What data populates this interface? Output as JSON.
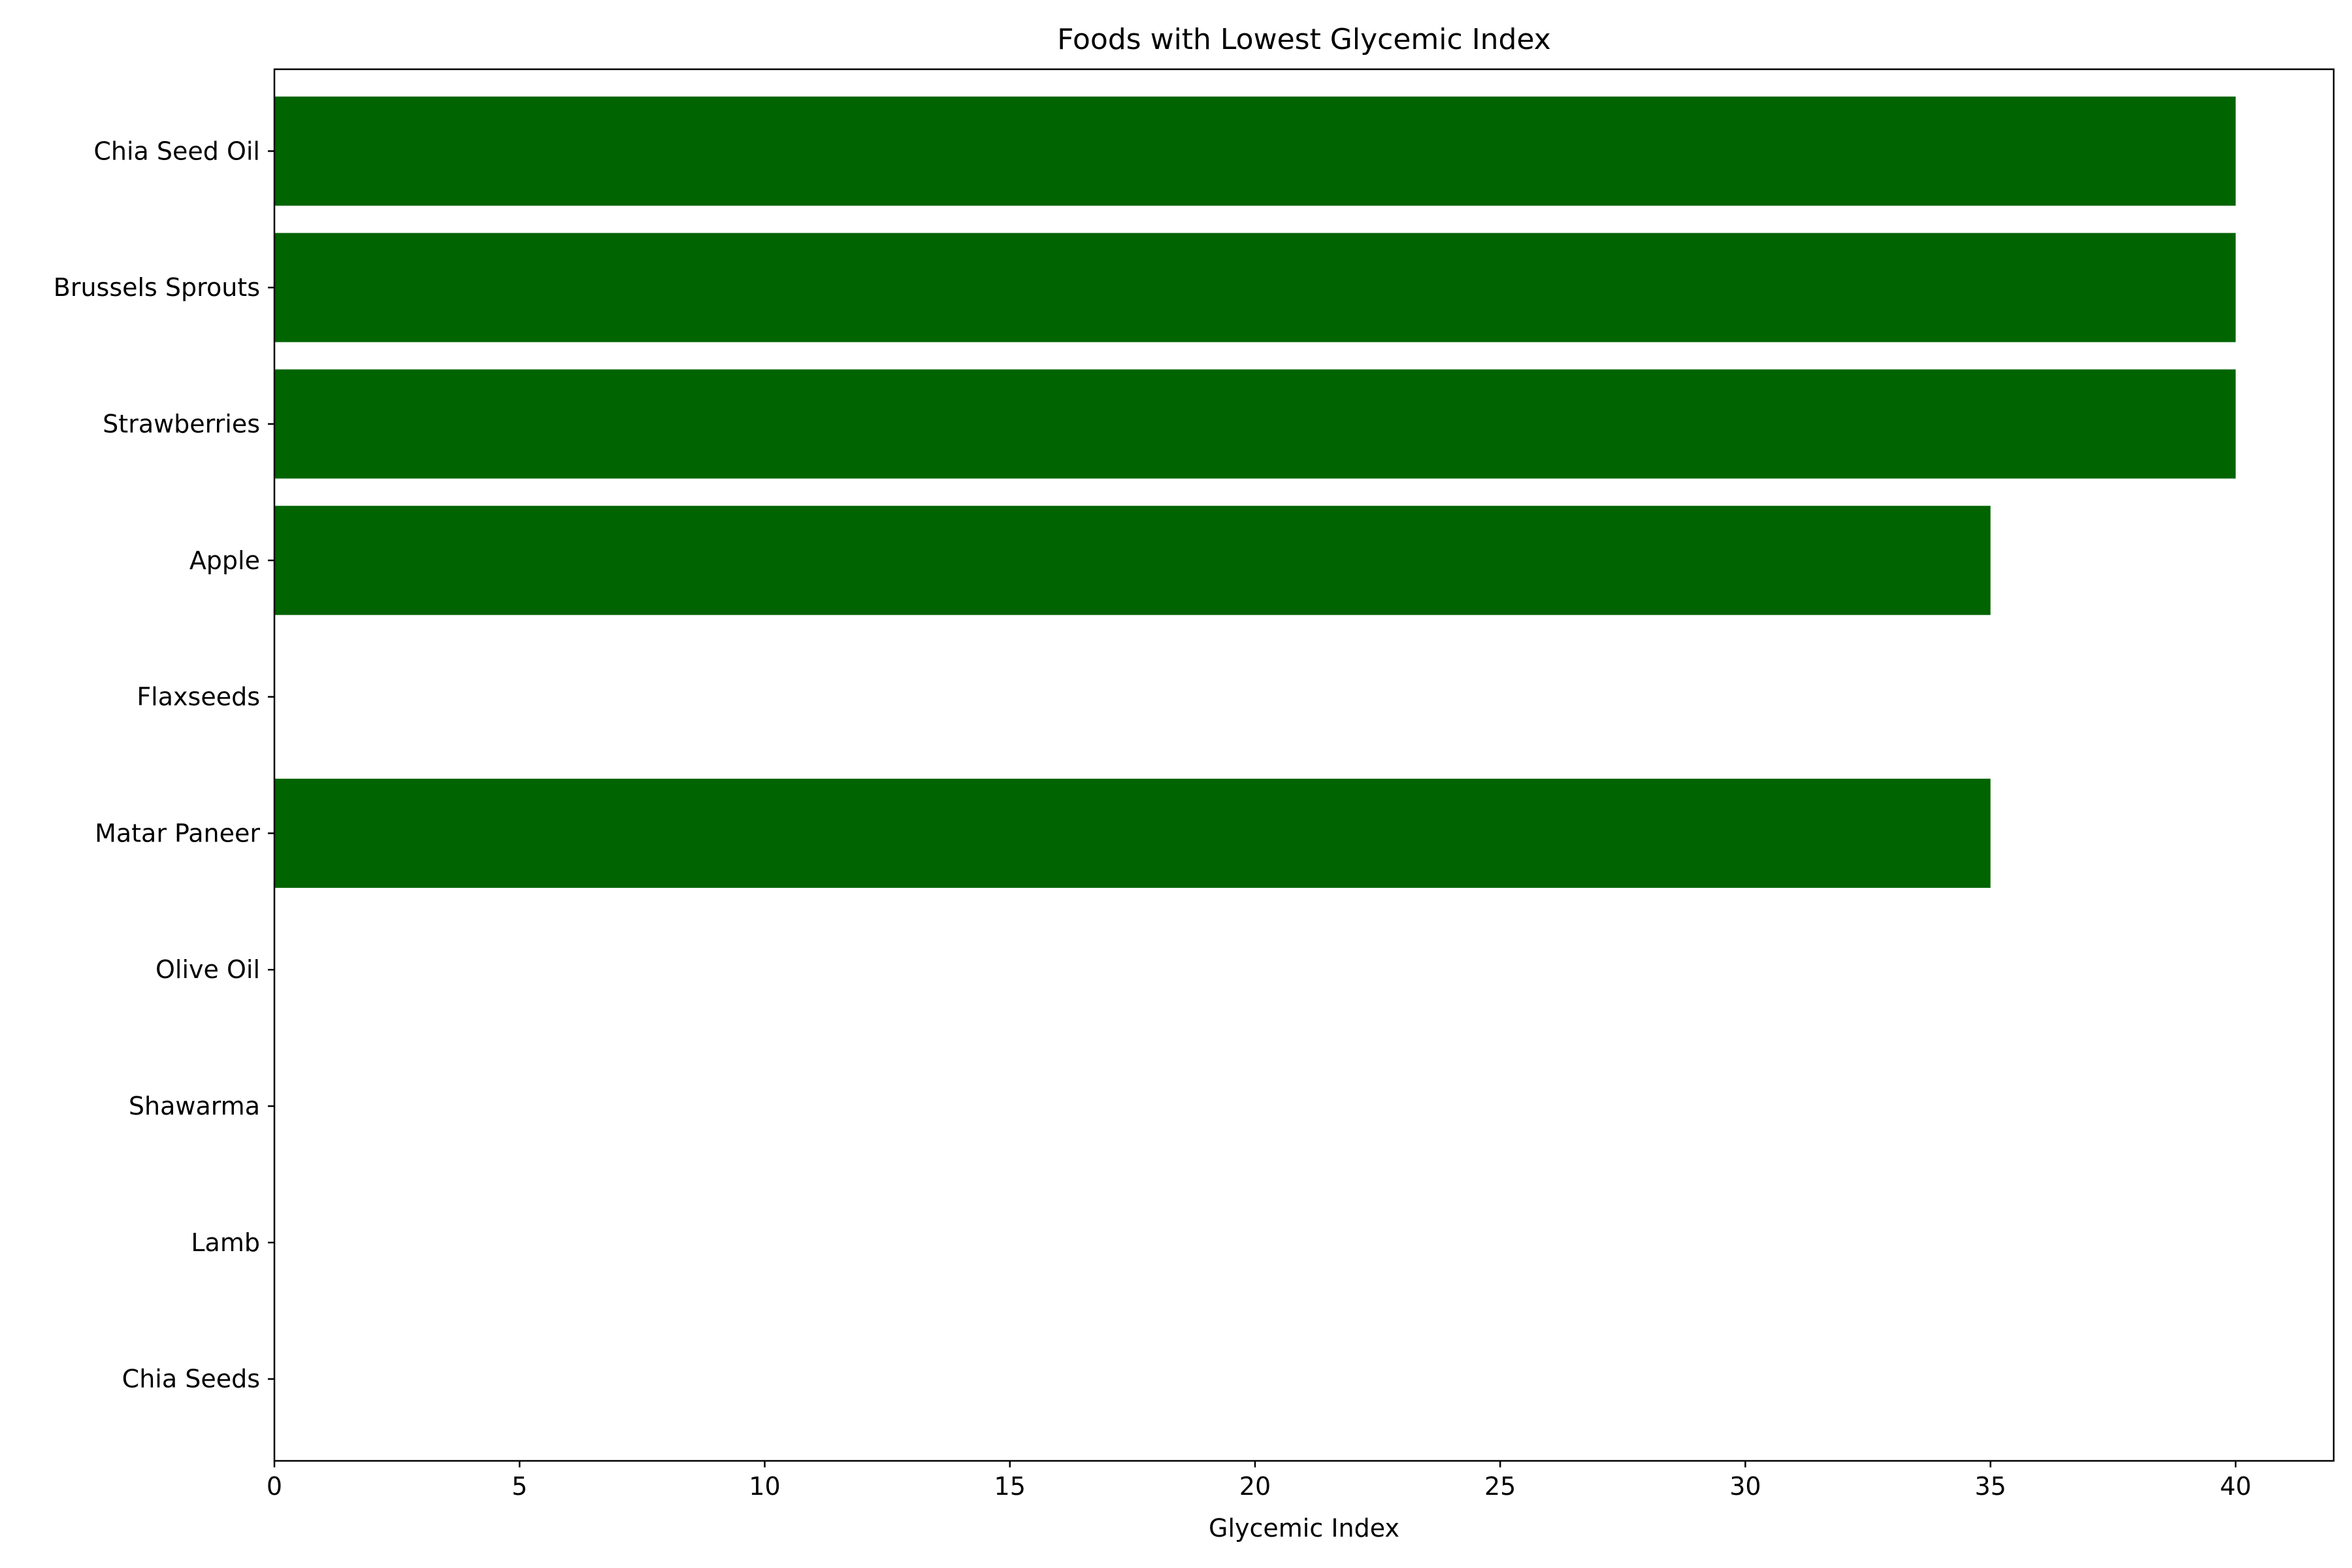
{
  "chart_data": {
    "type": "bar",
    "orientation": "horizontal",
    "title": "Foods with Lowest Glycemic Index",
    "xlabel": "Glycemic Index",
    "ylabel": "",
    "categories": [
      "Chia Seed Oil",
      "Brussels Sprouts",
      "Strawberries",
      "Apple",
      "Flaxseeds",
      "Matar Paneer",
      "Olive Oil",
      "Shawarma",
      "Lamb",
      "Chia Seeds"
    ],
    "values": [
      40,
      40,
      40,
      35,
      0,
      35,
      0,
      0,
      0,
      0
    ],
    "xlim": [
      0,
      42
    ],
    "xticks": [
      0,
      5,
      10,
      15,
      20,
      25,
      30,
      35,
      40
    ],
    "bar_color": "#006400",
    "grid": false,
    "legend": "none"
  }
}
